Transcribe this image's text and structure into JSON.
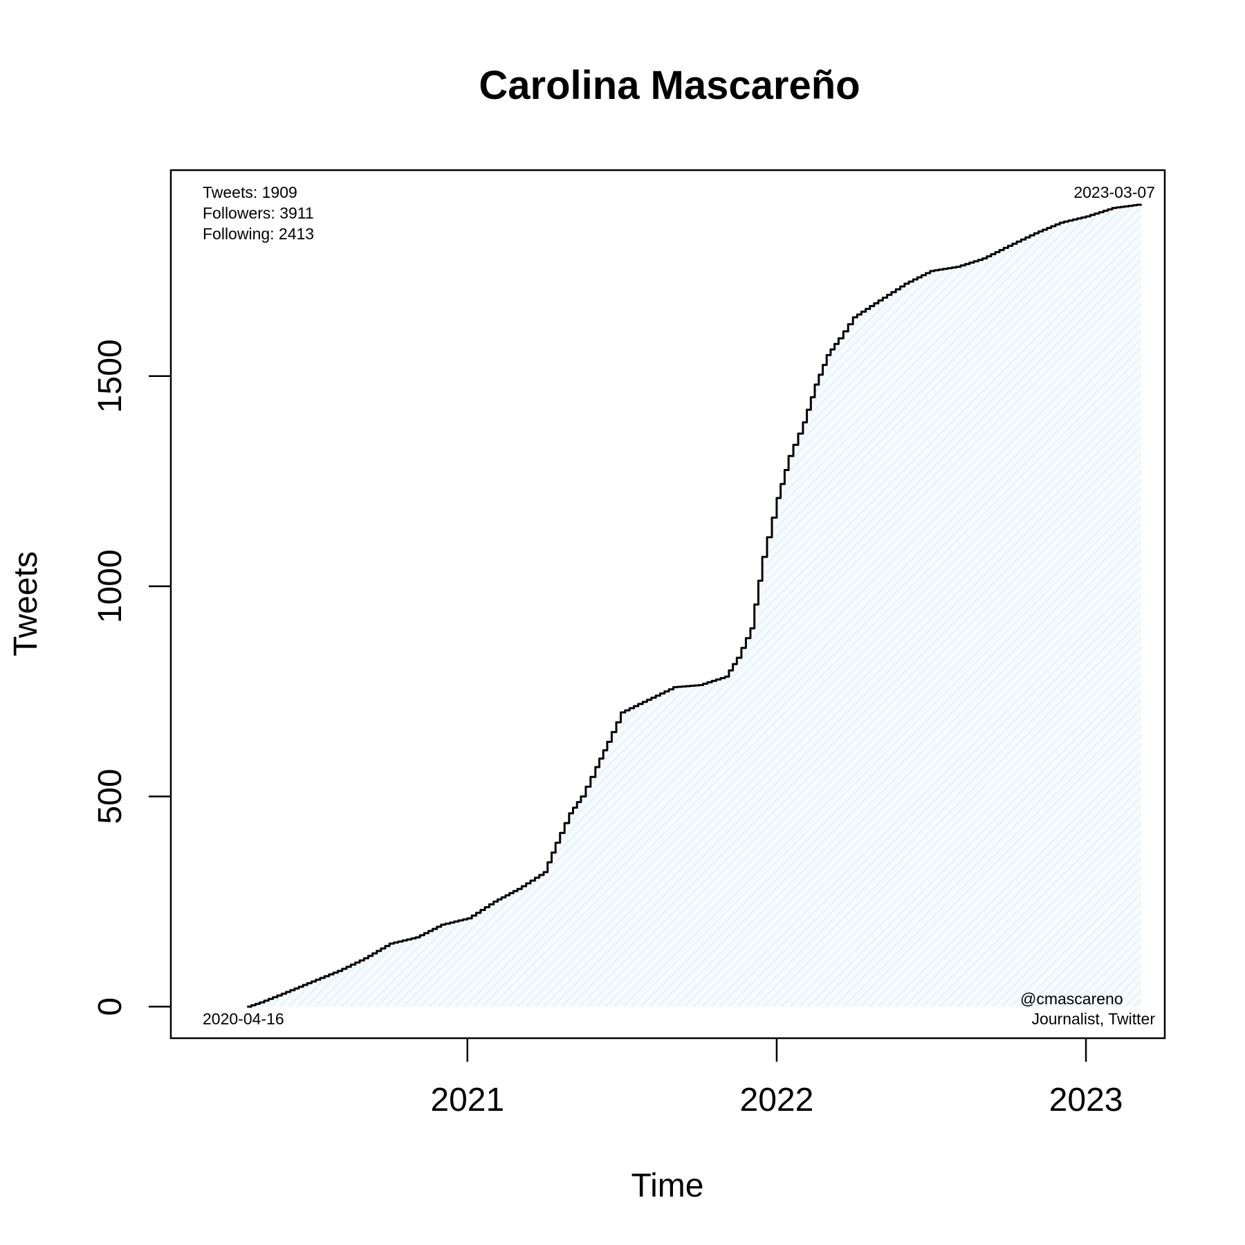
{
  "chart_data": {
    "type": "area",
    "title": "Carolina Mascareño",
    "xlabel": "Time",
    "ylabel": "Tweets",
    "x_range": [
      "2020-01-17",
      "2023-04-04"
    ],
    "ylim": [
      -75,
      1990
    ],
    "x_ticks": [
      {
        "date": "2021-01-01",
        "label": "2021"
      },
      {
        "date": "2022-01-01",
        "label": "2022"
      },
      {
        "date": "2023-01-01",
        "label": "2023"
      }
    ],
    "y_ticks": [
      {
        "value": 0,
        "label": "0"
      },
      {
        "value": 500,
        "label": "500"
      },
      {
        "value": 1000,
        "label": "1000"
      },
      {
        "value": 1500,
        "label": "1500"
      }
    ],
    "grid": false,
    "fill_color": "#e6f2f7",
    "line_color": "#000000",
    "annotations": {
      "stats": [
        "Tweets: 1909",
        "Followers: 3911",
        "Following: 2413"
      ],
      "end_date": "2023-03-07",
      "start_date": "2020-04-16",
      "handle": "@cmascareno",
      "description": "Journalist, Twitter"
    },
    "series": [
      {
        "x": [
          "2020-04-16",
          "2020-05-01",
          "2020-06-01",
          "2020-07-01",
          "2020-08-01",
          "2020-09-01",
          "2020-10-01",
          "2020-11-01",
          "2020-12-01",
          "2021-01-01",
          "2021-02-01",
          "2021-03-01",
          "2021-04-01",
          "2021-04-15",
          "2021-05-01",
          "2021-05-15",
          "2021-06-01",
          "2021-06-15",
          "2021-07-01",
          "2021-08-01",
          "2021-09-01",
          "2021-10-01",
          "2021-11-01",
          "2021-11-15",
          "2021-12-01",
          "2021-12-15",
          "2022-01-01",
          "2022-01-15",
          "2022-02-01",
          "2022-02-15",
          "2022-03-01",
          "2022-03-15",
          "2022-04-01",
          "2022-05-01",
          "2022-06-01",
          "2022-07-01",
          "2022-08-01",
          "2022-09-01",
          "2022-10-01",
          "2022-11-01",
          "2022-12-01",
          "2023-01-01",
          "2023-02-01",
          "2023-03-07"
        ],
        "y": [
          0,
          10,
          35,
          60,
          85,
          115,
          150,
          165,
          195,
          210,
          250,
          280,
          320,
          390,
          460,
          500,
          570,
          630,
          700,
          730,
          760,
          765,
          785,
          830,
          900,
          1070,
          1210,
          1310,
          1390,
          1480,
          1550,
          1590,
          1640,
          1680,
          1720,
          1750,
          1760,
          1780,
          1810,
          1840,
          1865,
          1880,
          1900,
          1909
        ]
      }
    ]
  }
}
